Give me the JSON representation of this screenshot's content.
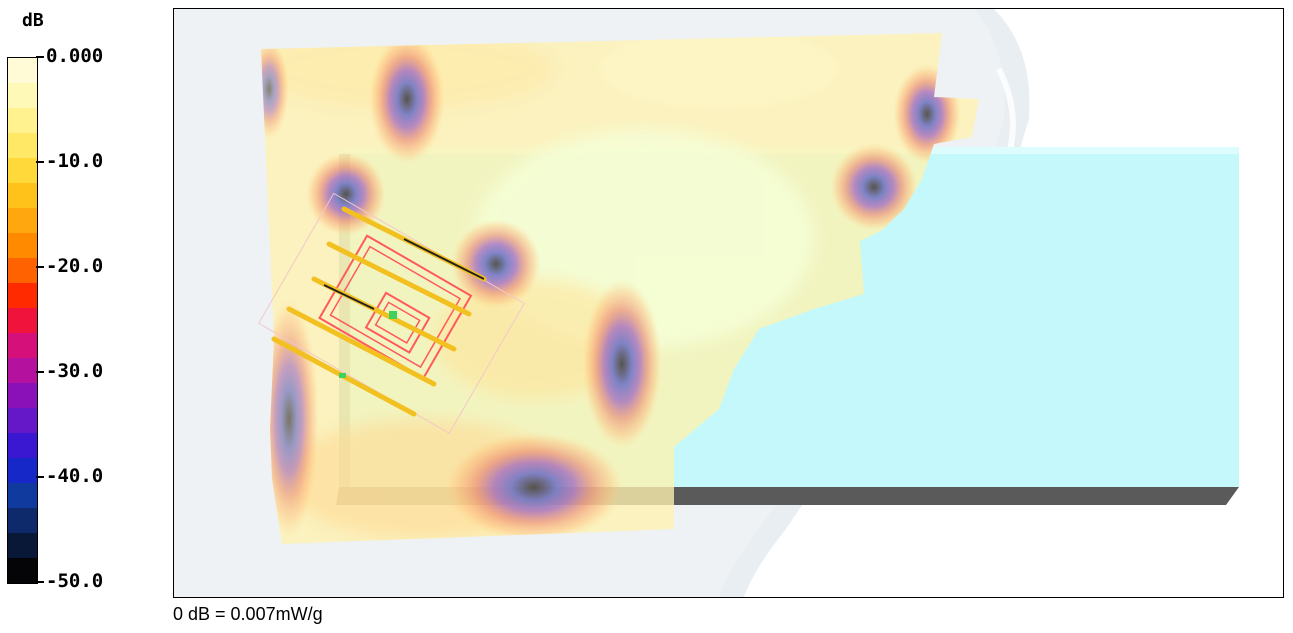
{
  "legend": {
    "unit": "dB",
    "ticks": [
      "0.000",
      "-10.0",
      "-20.0",
      "-30.0",
      "-40.0",
      "-50.0"
    ],
    "colors": [
      "#fffbd6",
      "#fff9b8",
      "#fff28f",
      "#ffe866",
      "#ffd83a",
      "#ffc21a",
      "#ffa70e",
      "#ff8a00",
      "#ff6200",
      "#ff2a00",
      "#f0143c",
      "#d6107a",
      "#b4129e",
      "#8a10b8",
      "#6418c8",
      "#3a18d2",
      "#1628c8",
      "#103a9e",
      "#0e2a6a",
      "#0a1838",
      "#050508"
    ]
  },
  "footer": {
    "scale": "0 dB = 0.007mW/g"
  },
  "viewport": {
    "phantom_color": "#c4f8fb",
    "field_base_color": "#fff2b0"
  }
}
